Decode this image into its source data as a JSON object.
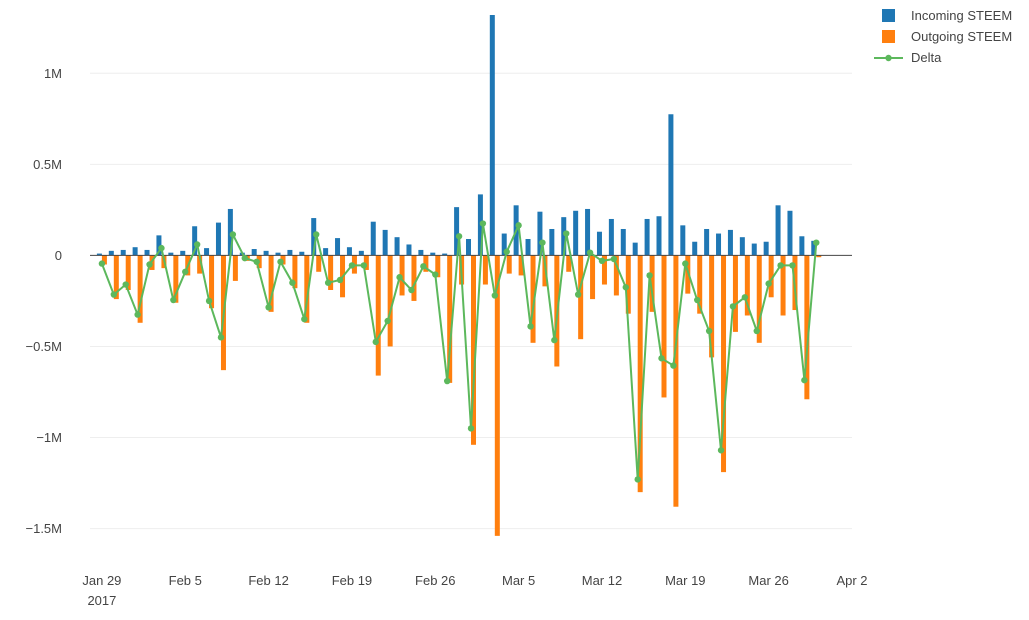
{
  "chart_data": {
    "type": "bar",
    "barmode": "overlay-grouped",
    "legend_position": "top-right",
    "grid": true,
    "x_range": [
      "2017-01-28",
      "2017-04-02"
    ],
    "ylim": [
      -1700000,
      1320000
    ],
    "x_ticks": [
      "2017-01-29",
      "2017-02-05",
      "2017-02-12",
      "2017-02-19",
      "2017-02-26",
      "2017-03-05",
      "2017-03-12",
      "2017-03-19",
      "2017-03-26",
      "2017-04-02"
    ],
    "x_tick_labels": [
      "Jan 29",
      "Feb 5",
      "Feb 12",
      "Feb 19",
      "Feb 26",
      "Mar 5",
      "Mar 12",
      "Mar 19",
      "Mar 26",
      "Apr 2"
    ],
    "x_tick_sublabel": "2017",
    "y_ticks": [
      1000000,
      500000,
      0,
      -500000,
      -1000000,
      -1500000
    ],
    "y_tick_labels": [
      "1M",
      "0.5M",
      "0",
      "−0.5M",
      "−1M",
      "−1.5M"
    ],
    "dates": [
      "2017-01-29",
      "2017-01-30",
      "2017-01-31",
      "2017-02-01",
      "2017-02-02",
      "2017-02-03",
      "2017-02-04",
      "2017-02-05",
      "2017-02-06",
      "2017-02-07",
      "2017-02-08",
      "2017-02-09",
      "2017-02-10",
      "2017-02-11",
      "2017-02-12",
      "2017-02-13",
      "2017-02-14",
      "2017-02-15",
      "2017-02-16",
      "2017-02-17",
      "2017-02-18",
      "2017-02-19",
      "2017-02-20",
      "2017-02-21",
      "2017-02-22",
      "2017-02-23",
      "2017-02-24",
      "2017-02-25",
      "2017-02-26",
      "2017-02-27",
      "2017-02-28",
      "2017-03-01",
      "2017-03-02",
      "2017-03-03",
      "2017-03-04",
      "2017-03-05",
      "2017-03-06",
      "2017-03-07",
      "2017-03-08",
      "2017-03-09",
      "2017-03-10",
      "2017-03-11",
      "2017-03-12",
      "2017-03-13",
      "2017-03-14",
      "2017-03-15",
      "2017-03-16",
      "2017-03-17",
      "2017-03-18",
      "2017-03-19",
      "2017-03-20",
      "2017-03-21",
      "2017-03-22",
      "2017-03-23",
      "2017-03-24",
      "2017-03-25",
      "2017-03-26",
      "2017-03-27",
      "2017-03-28",
      "2017-03-29",
      "2017-03-30"
    ],
    "series": [
      {
        "name": "Incoming STEEM",
        "color": "#1f77b4",
        "kind": "bar",
        "values": [
          10000,
          25000,
          30000,
          45000,
          30000,
          110000,
          15000,
          25000,
          160000,
          40000,
          180000,
          255000,
          15000,
          35000,
          25000,
          15000,
          30000,
          20000,
          205000,
          40000,
          95000,
          45000,
          25000,
          185000,
          140000,
          100000,
          60000,
          30000,
          15000,
          10000,
          265000,
          90000,
          335000,
          1320000,
          120000,
          275000,
          90000,
          240000,
          145000,
          210000,
          245000,
          255000,
          130000,
          200000,
          145000,
          70000,
          200000,
          215000,
          775000,
          165000,
          75000,
          145000,
          120000,
          140000,
          100000,
          65000,
          75000,
          275000,
          245000,
          105000,
          80000
        ]
      },
      {
        "name": "Outgoing STEEM",
        "color": "#ff7f0e",
        "kind": "bar",
        "values": [
          -50000,
          -240000,
          -190000,
          -370000,
          -80000,
          -70000,
          -260000,
          -110000,
          -100000,
          -290000,
          -630000,
          -140000,
          -30000,
          -70000,
          -310000,
          -50000,
          -180000,
          -370000,
          -90000,
          -190000,
          -230000,
          -100000,
          -80000,
          -660000,
          -500000,
          -220000,
          -250000,
          -90000,
          -120000,
          -700000,
          -160000,
          -1040000,
          -160000,
          -1540000,
          -100000,
          -110000,
          -480000,
          -170000,
          -610000,
          -90000,
          -460000,
          -240000,
          -160000,
          -220000,
          -320000,
          -1300000,
          -310000,
          -780000,
          -1380000,
          -210000,
          -320000,
          -560000,
          -1190000,
          -420000,
          -330000,
          -480000,
          -230000,
          -330000,
          -300000,
          -790000,
          -10000
        ]
      },
      {
        "name": "Delta",
        "color": "#5cb85c",
        "kind": "line",
        "values": [
          -45000,
          -215000,
          -160000,
          -325000,
          -50000,
          40000,
          -245000,
          -90000,
          60000,
          -250000,
          -450000,
          115000,
          -15000,
          -35000,
          -285000,
          -35000,
          -150000,
          -350000,
          115000,
          -150000,
          -135000,
          -55000,
          -55000,
          -475000,
          -360000,
          -120000,
          -190000,
          -60000,
          -105000,
          -690000,
          105000,
          -950000,
          175000,
          -220000,
          20000,
          165000,
          -390000,
          70000,
          -465000,
          120000,
          -215000,
          15000,
          -30000,
          -20000,
          -175000,
          -1230000,
          -110000,
          -565000,
          -605000,
          -45000,
          -245000,
          -415000,
          -1070000,
          -280000,
          -230000,
          -415000,
          -155000,
          -55000,
          -55000,
          -685000,
          70000
        ]
      }
    ]
  }
}
